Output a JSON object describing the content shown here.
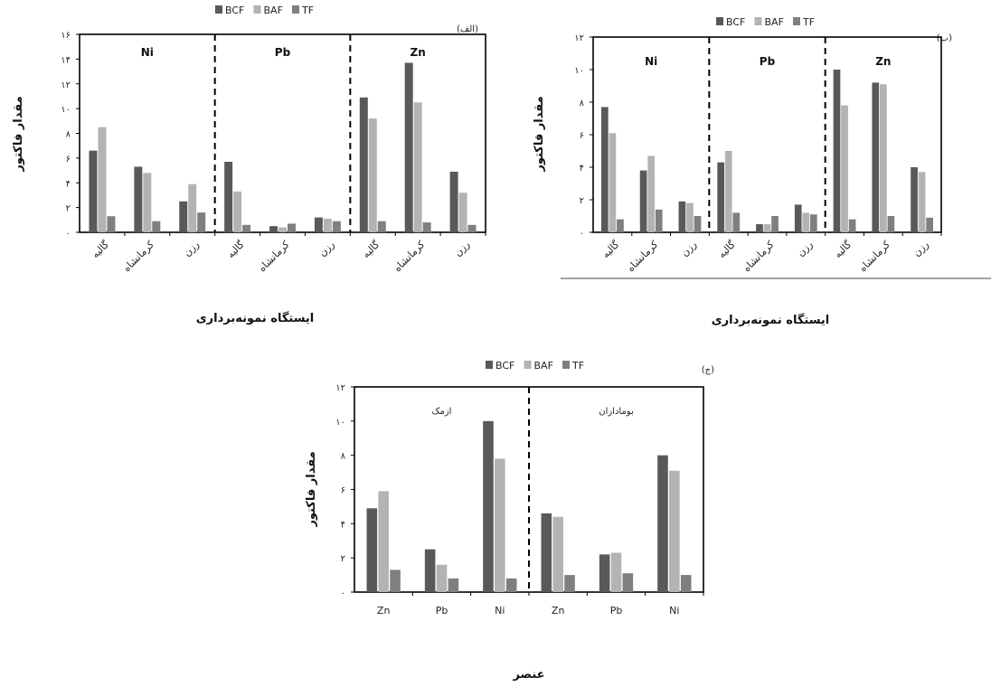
{
  "series_colors": {
    "BCF": "#595959",
    "BAF": "#b3b3b3",
    "TF": "#7f7f7f"
  },
  "chart_data": [
    {
      "type": "bar",
      "panel_label": "(الف)",
      "legend": [
        "BCF",
        "BAF",
        "TF"
      ],
      "groups": [
        "Ni",
        "Pb",
        "Zn"
      ],
      "categories": [
        "گالیه",
        "کرمانشاه",
        "رزن",
        "گالیه",
        "کرمانشاه",
        "رزن",
        "گالیه",
        "کرمانشاه",
        "رزن"
      ],
      "series": [
        {
          "name": "BCF",
          "values": [
            6.6,
            5.3,
            2.5,
            5.7,
            0.5,
            1.2,
            10.9,
            13.7,
            4.9
          ]
        },
        {
          "name": "BAF",
          "values": [
            8.5,
            4.8,
            3.9,
            3.3,
            0.4,
            1.1,
            9.2,
            10.5,
            3.2
          ]
        },
        {
          "name": "TF",
          "values": [
            1.3,
            0.9,
            1.6,
            0.6,
            0.7,
            0.9,
            0.9,
            0.8,
            0.6
          ]
        }
      ],
      "yticks": [
        "۰",
        "۲",
        "۴",
        "۶",
        "۸",
        "۱۰",
        "۱۲",
        "۱۴",
        "۱۶"
      ],
      "ylim": [
        0,
        16
      ],
      "ylabel": "مقدار فاکتور",
      "xlabel": "ایستگاه نمونه‌برداری",
      "dividers": "dashed between groups"
    },
    {
      "type": "bar",
      "panel_label": "(ب)",
      "legend": [
        "BCF",
        "BAF",
        "TF"
      ],
      "groups": [
        "Ni",
        "Pb",
        "Zn"
      ],
      "categories": [
        "گالیه",
        "کرمانشاه",
        "رزن",
        "گالیه",
        "کرمانشاه",
        "رزن",
        "گالیه",
        "کرمانشاه",
        "رزن"
      ],
      "series": [
        {
          "name": "BCF",
          "values": [
            7.7,
            3.8,
            1.9,
            4.3,
            0.5,
            1.7,
            10.0,
            9.2,
            4.0
          ]
        },
        {
          "name": "BAF",
          "values": [
            6.1,
            4.7,
            1.8,
            5.0,
            0.5,
            1.2,
            7.8,
            9.1,
            3.7
          ]
        },
        {
          "name": "TF",
          "values": [
            0.8,
            1.4,
            1.0,
            1.2,
            1.0,
            1.1,
            0.8,
            1.0,
            0.9
          ]
        }
      ],
      "yticks": [
        "۰",
        "۲",
        "۴",
        "۶",
        "۸",
        "۱۰",
        "۱۲"
      ],
      "ylim": [
        0,
        12
      ],
      "ylabel": "مقدار فاکتور",
      "xlabel": "ایستگاه نمونه‌برداری",
      "dividers": "dashed between groups"
    },
    {
      "type": "bar",
      "panel_label": "(ج)",
      "legend": [
        "BCF",
        "BAF",
        "TF"
      ],
      "groups": [
        "ازمک",
        "بوماداران"
      ],
      "categories": [
        "Zn",
        "Pb",
        "Ni",
        "Zn",
        "Pb",
        "Ni"
      ],
      "series": [
        {
          "name": "BCF",
          "values": [
            4.9,
            2.5,
            10.0,
            4.6,
            2.2,
            8.0
          ]
        },
        {
          "name": "BAF",
          "values": [
            5.9,
            1.6,
            7.8,
            4.4,
            2.3,
            7.1
          ]
        },
        {
          "name": "TF",
          "values": [
            1.3,
            0.8,
            0.8,
            1.0,
            1.1,
            1.0
          ]
        }
      ],
      "yticks": [
        "۰",
        "۲",
        "۴",
        "۶",
        "۸",
        "۱۰",
        "۱۲"
      ],
      "ylim": [
        0,
        12
      ],
      "ylabel": "مقدار فاکتور",
      "xlabel": "عنصر",
      "dividers": "dashed between groups"
    }
  ]
}
